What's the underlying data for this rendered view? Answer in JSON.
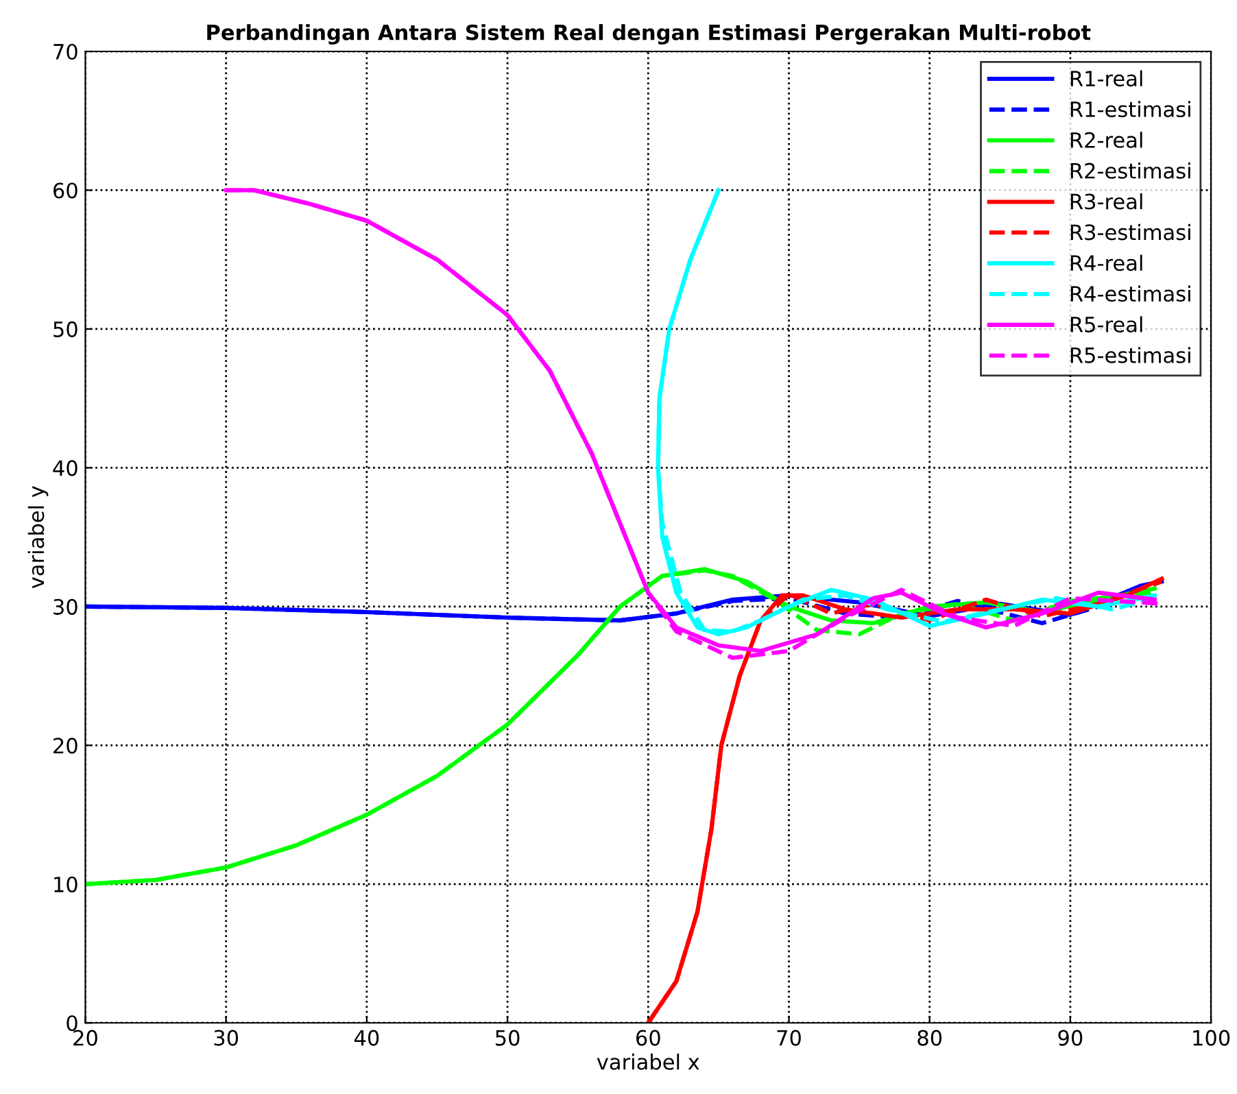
{
  "chart_data": {
    "type": "line",
    "title": "Perbandingan Antara Sistem Real dengan Estimasi Pergerakan Multi-robot",
    "xlabel": "variabel x",
    "ylabel": "variabel y",
    "xlim": [
      20,
      100
    ],
    "ylim": [
      0,
      70
    ],
    "xticks": [
      20,
      30,
      40,
      50,
      60,
      70,
      80,
      90,
      100
    ],
    "yticks": [
      0,
      10,
      20,
      30,
      40,
      50,
      60,
      70
    ],
    "grid": true,
    "legend": "top right",
    "series": [
      {
        "name": "R1-real",
        "color": "#0000ff",
        "line_style": "solid",
        "x": [
          20,
          30,
          40,
          50,
          58,
          62,
          66,
          70,
          75,
          80,
          85,
          90,
          95,
          96.5
        ],
        "values": [
          30,
          29.9,
          29.6,
          29.2,
          29.0,
          29.5,
          30.5,
          30.8,
          30.3,
          29.3,
          30.2,
          29.4,
          31.5,
          31.8
        ]
      },
      {
        "name": "R1-estimasi",
        "color": "#0000ff",
        "line_style": "dashed",
        "x": [
          20,
          30,
          40,
          50,
          58,
          62,
          66,
          70,
          74,
          78,
          82,
          88,
          92,
          96
        ],
        "values": [
          30,
          29.9,
          29.6,
          29.2,
          29.0,
          29.5,
          30.4,
          30.6,
          29.5,
          29.2,
          30.4,
          28.8,
          30.0,
          31.8
        ]
      },
      {
        "name": "R2-real",
        "color": "#00ff00",
        "line_style": "solid",
        "x": [
          20,
          25,
          30,
          35,
          40,
          45,
          50,
          55,
          58,
          61,
          64,
          67,
          70,
          73,
          76,
          80,
          84,
          88,
          92,
          96
        ],
        "values": [
          10,
          10.3,
          11.2,
          12.8,
          15,
          17.8,
          21.5,
          26.5,
          30,
          32.2,
          32.7,
          31.8,
          30,
          29,
          28.8,
          30,
          30.3,
          29.6,
          30.5,
          31.3
        ]
      },
      {
        "name": "R2-estimasi",
        "color": "#00ff00",
        "line_style": "dashed",
        "x": [
          20,
          25,
          30,
          35,
          40,
          45,
          50,
          55,
          58,
          61,
          64,
          66,
          69,
          72,
          75,
          78,
          82,
          86,
          90,
          96
        ],
        "values": [
          10,
          10.3,
          11.2,
          12.8,
          15,
          17.8,
          21.5,
          26.5,
          30,
          32.2,
          32.6,
          32.2,
          30.5,
          28.3,
          28,
          29.5,
          30.2,
          29.0,
          30.4,
          31.0
        ]
      },
      {
        "name": "R3-real",
        "color": "#ff0000",
        "line_style": "solid",
        "x": [
          60,
          62,
          63.5,
          64.5,
          65.2,
          66.5,
          68,
          69.5,
          71,
          74,
          78,
          82,
          86,
          90,
          94,
          96.5
        ],
        "values": [
          0,
          3,
          8,
          14,
          20,
          25,
          29,
          30.8,
          30.8,
          29.8,
          29.2,
          29.8,
          29.8,
          29.5,
          30.8,
          32
        ]
      },
      {
        "name": "R3-estimasi",
        "color": "#ff0000",
        "line_style": "dashed",
        "x": [
          60,
          62,
          63.5,
          64.5,
          65.2,
          66.5,
          68,
          70,
          73,
          76,
          80,
          84,
          88,
          92,
          96.5
        ],
        "values": [
          0,
          3,
          8,
          14,
          20,
          25,
          29,
          30.9,
          29.5,
          30.2,
          29.0,
          30.5,
          29.3,
          30.2,
          31.8
        ]
      },
      {
        "name": "R4-real",
        "color": "#00ffff",
        "line_style": "solid",
        "x": [
          65,
          63,
          61.5,
          60.8,
          60.7,
          61,
          62,
          63.5,
          65,
          67,
          70,
          73,
          76,
          80,
          84,
          88,
          92,
          96
        ],
        "values": [
          60,
          55,
          50,
          45,
          40,
          35,
          31,
          28.5,
          28,
          28.5,
          30,
          31.2,
          30.5,
          28.6,
          29.5,
          30.5,
          30.0,
          30.8
        ]
      },
      {
        "name": "R4-estimasi",
        "color": "#00ffff",
        "line_style": "dashed",
        "x": [
          65,
          63,
          61.5,
          60.8,
          60.7,
          61,
          62.3,
          64,
          66,
          68,
          71,
          74,
          77,
          81,
          85,
          89,
          93,
          96
        ],
        "values": [
          60,
          55,
          50,
          45,
          40,
          36,
          31,
          28.3,
          28.2,
          29,
          30.5,
          30.8,
          29.8,
          28.9,
          29.8,
          30.6,
          29.8,
          30.6
        ]
      },
      {
        "name": "R5-real",
        "color": "#ff00ff",
        "line_style": "solid",
        "x": [
          30,
          32,
          36,
          40,
          45,
          50,
          53,
          56,
          58,
          60,
          62,
          65,
          68,
          72,
          76,
          78,
          81,
          84,
          88,
          92,
          96
        ],
        "values": [
          60,
          60,
          59,
          57.8,
          55,
          51,
          47,
          41,
          36,
          31,
          28.5,
          27.2,
          26.8,
          28,
          30.6,
          31,
          29.5,
          28.5,
          29.5,
          31.0,
          30.5
        ]
      },
      {
        "name": "R5-estimasi",
        "color": "#ff00ff",
        "line_style": "dashed",
        "x": [
          30,
          32,
          36,
          40,
          45,
          50,
          53,
          56,
          58,
          60,
          62,
          66,
          70,
          74,
          78,
          82,
          86,
          90,
          96.5
        ],
        "values": [
          60,
          60,
          59,
          57.8,
          55,
          51,
          47,
          41,
          36,
          31,
          28.2,
          26.3,
          26.8,
          29.2,
          31.2,
          29.2,
          28.6,
          30.6,
          30.2
        ]
      }
    ]
  }
}
